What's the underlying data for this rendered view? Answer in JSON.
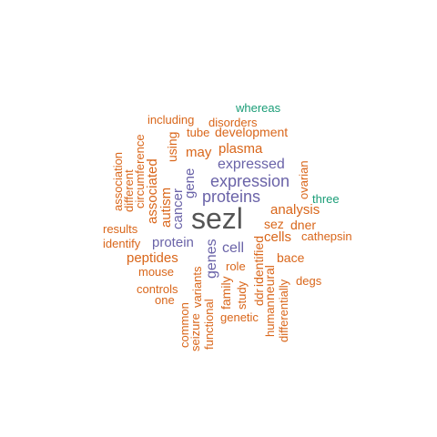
{
  "colors": {
    "dark": "#555555",
    "purple": "#6a63a8",
    "orange": "#d9661a",
    "green": "#1a9d77"
  },
  "words": {
    "sezl": "sezl",
    "whereas": "whereas",
    "including": "including",
    "disorders": "disorders",
    "tube": "tube",
    "development": "development",
    "plasma": "plasma",
    "may": "may",
    "expressed": "expressed",
    "expression": "expression",
    "proteins": "proteins",
    "three": "three",
    "analysis": "analysis",
    "sez": "sez",
    "dner": "dner",
    "cells": "cells",
    "cathepsin": "cathepsin",
    "results": "results",
    "identify": "identify",
    "protein": "protein",
    "cell": "cell",
    "bace": "bace",
    "peptides": "peptides",
    "role": "role",
    "mouse": "mouse",
    "degs": "degs",
    "controls": "controls",
    "one": "one",
    "genetic": "genetic",
    "association": "association",
    "different": "different",
    "circumference": "circumference",
    "associated": "associated",
    "using": "using",
    "gene": "gene",
    "cancer": "cancer",
    "autism": "autism",
    "genes": "genes",
    "variants": "variants",
    "seizure": "seizure",
    "common": "common",
    "functional": "functional",
    "family": "family",
    "study": "study",
    "ddr": "ddr",
    "identified": "identified",
    "neural": "neural",
    "human": "human",
    "differentially": "differentially",
    "ovarian": "ovarian"
  }
}
